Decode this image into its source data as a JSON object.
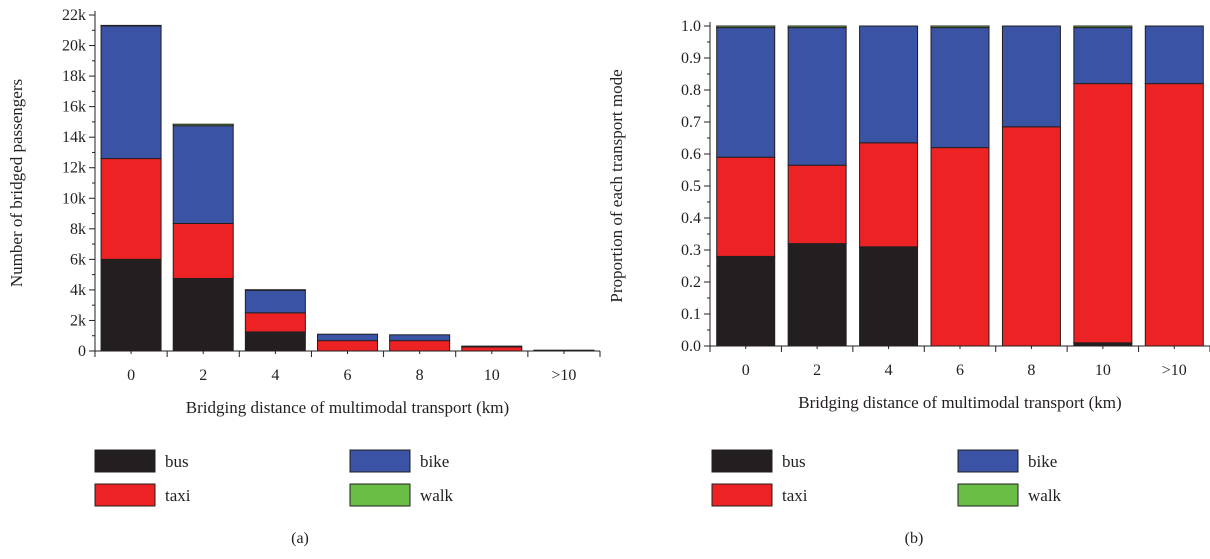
{
  "panels": [
    {
      "label": "(a)"
    },
    {
      "label": "(b)"
    }
  ],
  "legend": [
    {
      "name": "bus",
      "color": "#231f20"
    },
    {
      "name": "bike",
      "color": "#3a53a4"
    },
    {
      "name": "taxi",
      "color": "#ed2224"
    },
    {
      "name": "walk",
      "color": "#6abd45"
    }
  ],
  "chart_data": [
    {
      "type": "bar",
      "stacked": true,
      "xlabel": "Bridging distance of multimodal transport (km)",
      "ylabel": "Number of bridged passengers",
      "categories": [
        "0",
        "2",
        "4",
        "6",
        "8",
        "10",
        ">10"
      ],
      "ylim": [
        0,
        22000
      ],
      "yticks": [
        0,
        2000,
        4000,
        6000,
        8000,
        10000,
        12000,
        14000,
        16000,
        18000,
        20000,
        22000
      ],
      "ytick_labels": [
        "0",
        "2k",
        "4k",
        "6k",
        "8k",
        "10k",
        "12k",
        "14k",
        "16k",
        "18k",
        "20k",
        "22k"
      ],
      "grid": false,
      "series": [
        {
          "name": "bus",
          "color": "#231f20",
          "values": [
            6000,
            4750,
            1250,
            0,
            0,
            0,
            0
          ]
        },
        {
          "name": "taxi",
          "color": "#ed2224",
          "values": [
            6600,
            3600,
            1250,
            680,
            680,
            270,
            40
          ]
        },
        {
          "name": "bike",
          "color": "#3a53a4",
          "values": [
            8700,
            6400,
            1500,
            420,
            380,
            50,
            10
          ]
        },
        {
          "name": "walk",
          "color": "#6abd45",
          "values": [
            20,
            100,
            10,
            0,
            0,
            0,
            0
          ]
        }
      ]
    },
    {
      "type": "bar",
      "stacked": true,
      "xlabel": "Bridging distance of multimodal transport (km)",
      "ylabel": "Proportion of each transport mode",
      "categories": [
        "0",
        "2",
        "4",
        "6",
        "8",
        "10",
        ">10"
      ],
      "ylim": [
        0,
        1.0
      ],
      "yticks": [
        0.0,
        0.1,
        0.2,
        0.3,
        0.4,
        0.5,
        0.6,
        0.7,
        0.8,
        0.9,
        1.0
      ],
      "ytick_labels": [
        "0.0",
        "0.1",
        "0.2",
        "0.3",
        "0.4",
        "0.5",
        "0.6",
        "0.7",
        "0.8",
        "0.9",
        "1.0"
      ],
      "grid": false,
      "series": [
        {
          "name": "bus",
          "color": "#231f20",
          "values": [
            0.28,
            0.32,
            0.31,
            0.0,
            0.0,
            0.01,
            0.0
          ]
        },
        {
          "name": "taxi",
          "color": "#ed2224",
          "values": [
            0.31,
            0.245,
            0.325,
            0.62,
            0.685,
            0.81,
            0.82
          ]
        },
        {
          "name": "bike",
          "color": "#3a53a4",
          "values": [
            0.405,
            0.43,
            0.365,
            0.375,
            0.315,
            0.175,
            0.18
          ]
        },
        {
          "name": "walk",
          "color": "#6abd45",
          "values": [
            0.005,
            0.005,
            0.0,
            0.005,
            0.0,
            0.005,
            0.0
          ]
        }
      ]
    }
  ]
}
